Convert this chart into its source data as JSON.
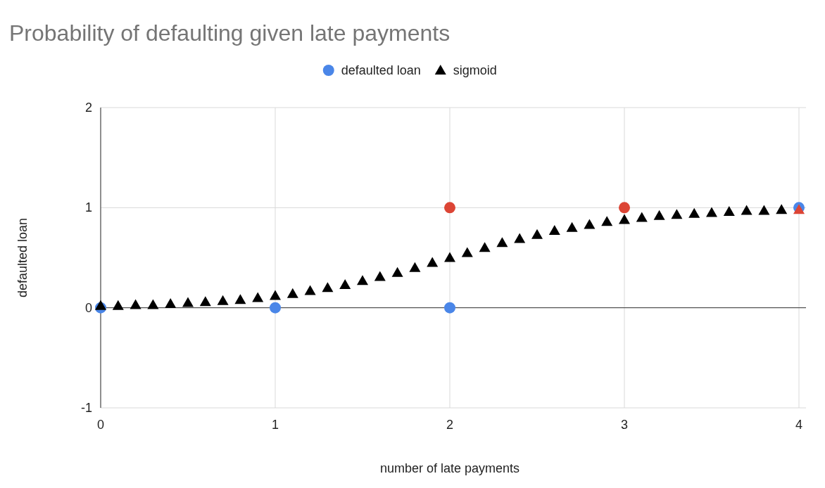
{
  "chart_data": {
    "type": "scatter",
    "title": "Probability of defaulting given late payments",
    "xlabel": "number of late payments",
    "ylabel": "defaulted loan",
    "xlim": [
      0,
      4
    ],
    "xticks": [
      0,
      1,
      2,
      3,
      4
    ],
    "ylim": [
      -1,
      2
    ],
    "yticks": [
      -1,
      0,
      1,
      2
    ],
    "grid": true,
    "legend": "top",
    "series": [
      {
        "name": "defaulted loan",
        "color": "#4a86e8",
        "marker": "circle",
        "x": [
          0,
          1,
          2,
          2,
          3,
          4
        ],
        "values": [
          0,
          0,
          0,
          1,
          1,
          1
        ],
        "colors": [
          "#4a86e8",
          "#4a86e8",
          "#4a86e8",
          "#dc4535",
          "#dc4535",
          "#4a86e8"
        ]
      },
      {
        "name": "sigmoid",
        "color": "#000000",
        "marker": "triangle",
        "x": [
          0,
          0.1,
          0.2,
          0.3,
          0.4,
          0.5,
          0.6,
          0.7,
          0.8,
          0.9,
          1,
          1.1,
          1.2,
          1.3,
          1.4,
          1.5,
          1.6,
          1.7,
          1.8,
          1.9,
          2,
          2.1,
          2.2,
          2.3,
          2.4,
          2.5,
          2.6,
          2.7,
          2.8,
          2.9,
          3,
          3.1,
          3.2,
          3.3,
          3.4,
          3.5,
          3.6,
          3.7,
          3.8,
          3.9,
          4
        ],
        "values": [
          0.02,
          0.02,
          0.03,
          0.03,
          0.04,
          0.05,
          0.06,
          0.07,
          0.08,
          0.1,
          0.12,
          0.14,
          0.17,
          0.2,
          0.23,
          0.27,
          0.31,
          0.35,
          0.4,
          0.45,
          0.5,
          0.55,
          0.6,
          0.65,
          0.69,
          0.73,
          0.77,
          0.8,
          0.83,
          0.86,
          0.88,
          0.9,
          0.92,
          0.93,
          0.94,
          0.95,
          0.96,
          0.97,
          0.97,
          0.98,
          0.98
        ],
        "colors": [
          "#000000",
          "#000000",
          "#000000",
          "#000000",
          "#000000",
          "#000000",
          "#000000",
          "#000000",
          "#000000",
          "#000000",
          "#000000",
          "#000000",
          "#000000",
          "#000000",
          "#000000",
          "#000000",
          "#000000",
          "#000000",
          "#000000",
          "#000000",
          "#000000",
          "#000000",
          "#000000",
          "#000000",
          "#000000",
          "#000000",
          "#000000",
          "#000000",
          "#000000",
          "#000000",
          "#000000",
          "#000000",
          "#000000",
          "#000000",
          "#000000",
          "#000000",
          "#000000",
          "#000000",
          "#000000",
          "#000000",
          "#dc4535"
        ]
      }
    ]
  }
}
